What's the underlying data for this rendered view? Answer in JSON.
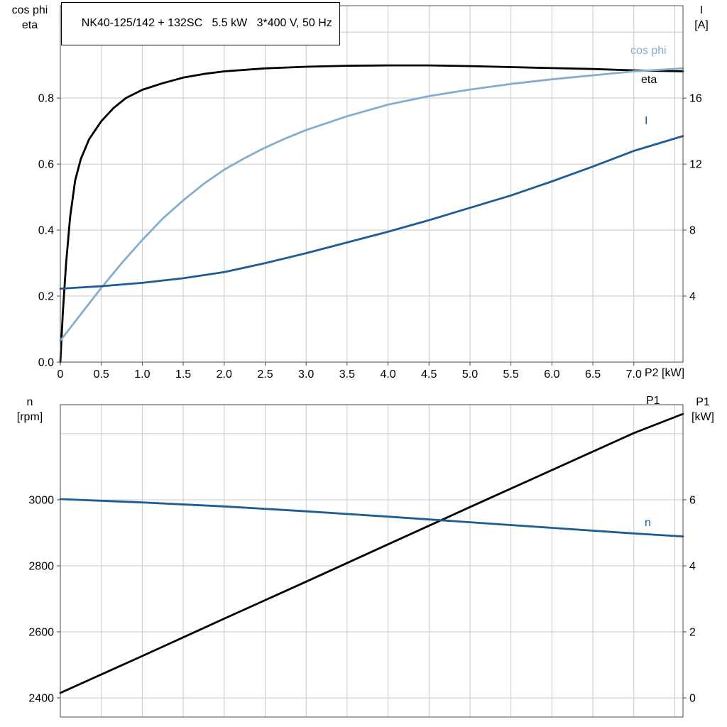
{
  "title": "NK40-125/142 + 132SC   5.5 kW   3*400 V, 50 Hz",
  "colors": {
    "black": "#000000",
    "dark_blue": "#1d5c96",
    "light_blue": "#85aecd",
    "grid": "#c9c9c9",
    "border": "#4d4d4d",
    "background": "#ffffff"
  },
  "labels": {
    "top_left_1": "cos phi",
    "top_left_2": "eta",
    "top_right_1": "I",
    "top_right_2": "[A]",
    "x_axis": "P2 [kW]",
    "curve_cos_phi": "cos phi",
    "curve_eta": "eta",
    "curve_current": "I",
    "bottom_left_1": "n",
    "bottom_left_2": "[rpm]",
    "bottom_right_1": "P1",
    "bottom_right_2": "[kW]",
    "curve_p1": "P1",
    "curve_n": "n"
  },
  "chart_data": [
    {
      "type": "line",
      "name": "top",
      "title": "NK40-125/142 + 132SC   5.5 kW   3*400 V, 50 Hz",
      "xlabel": "P2 [kW]",
      "ylabel_left": "cos phi / eta",
      "ylabel_right": "I [A]",
      "xlim": [
        0,
        7.6
      ],
      "ylim_left": [
        0,
        1.08
      ],
      "ylim_right": [
        0,
        21.6
      ],
      "grid_on": true,
      "x_ticks": {
        "values": [
          0,
          0.5,
          1,
          1.5,
          2,
          2.5,
          3,
          3.5,
          4,
          4.5,
          5,
          5.5,
          6,
          6.5,
          7
        ],
        "labels": [
          "0",
          "0.5",
          "1.0",
          "1.5",
          "2.0",
          "2.5",
          "3.0",
          "3.5",
          "4.0",
          "4.5",
          "5.0",
          "5.5",
          "6.0",
          "6.5",
          "7.0"
        ]
      },
      "y_ticks_left": {
        "values": [
          0,
          0.2,
          0.4,
          0.6,
          0.8
        ],
        "labels": [
          "0.0",
          "0.2",
          "0.4",
          "0.6",
          "0.8"
        ]
      },
      "y_ticks_right": {
        "values": [
          4,
          8,
          12,
          16
        ],
        "labels": [
          "4",
          "8",
          "12",
          "16"
        ]
      },
      "grid_x": [
        0.5,
        1,
        1.5,
        2,
        2.5,
        3,
        3.5,
        4,
        4.5,
        5,
        5.5,
        6,
        6.5,
        7,
        7.5
      ],
      "grid_y": [
        0.2,
        0.4,
        0.6,
        0.8,
        1.0
      ],
      "series": [
        {
          "name": "eta",
          "axis": "left",
          "color": "#000000",
          "width": 2.8,
          "points": [
            [
              0,
              0
            ],
            [
              0.03,
              0.15
            ],
            [
              0.07,
              0.3
            ],
            [
              0.12,
              0.44
            ],
            [
              0.18,
              0.55
            ],
            [
              0.25,
              0.615
            ],
            [
              0.35,
              0.675
            ],
            [
              0.5,
              0.73
            ],
            [
              0.65,
              0.77
            ],
            [
              0.8,
              0.8
            ],
            [
              1.0,
              0.825
            ],
            [
              1.25,
              0.845
            ],
            [
              1.5,
              0.862
            ],
            [
              1.75,
              0.873
            ],
            [
              2.0,
              0.881
            ],
            [
              2.5,
              0.89
            ],
            [
              3.0,
              0.895
            ],
            [
              3.5,
              0.898
            ],
            [
              4.0,
              0.899
            ],
            [
              4.5,
              0.899
            ],
            [
              5.0,
              0.897
            ],
            [
              5.5,
              0.894
            ],
            [
              6.0,
              0.891
            ],
            [
              6.5,
              0.888
            ],
            [
              7.0,
              0.884
            ],
            [
              7.6,
              0.881
            ]
          ]
        },
        {
          "name": "cos phi",
          "axis": "left",
          "color": "#85aecd",
          "width": 2.8,
          "points": [
            [
              0,
              0.065
            ],
            [
              0.25,
              0.145
            ],
            [
              0.5,
              0.225
            ],
            [
              0.75,
              0.3
            ],
            [
              1.0,
              0.37
            ],
            [
              1.25,
              0.435
            ],
            [
              1.5,
              0.49
            ],
            [
              1.75,
              0.54
            ],
            [
              2.0,
              0.583
            ],
            [
              2.25,
              0.618
            ],
            [
              2.5,
              0.65
            ],
            [
              2.75,
              0.678
            ],
            [
              3.0,
              0.703
            ],
            [
              3.5,
              0.745
            ],
            [
              4.0,
              0.78
            ],
            [
              4.5,
              0.806
            ],
            [
              5.0,
              0.826
            ],
            [
              5.5,
              0.843
            ],
            [
              6.0,
              0.857
            ],
            [
              6.5,
              0.869
            ],
            [
              7.0,
              0.881
            ],
            [
              7.6,
              0.89
            ]
          ]
        },
        {
          "name": "I",
          "axis": "right",
          "color": "#1d5c96",
          "width": 2.8,
          "points": [
            [
              0,
              4.45
            ],
            [
              0.5,
              4.6
            ],
            [
              1.0,
              4.8
            ],
            [
              1.5,
              5.08
            ],
            [
              2.0,
              5.45
            ],
            [
              2.5,
              6.0
            ],
            [
              3.0,
              6.6
            ],
            [
              3.5,
              7.25
            ],
            [
              4.0,
              7.9
            ],
            [
              4.5,
              8.6
            ],
            [
              5.0,
              9.35
            ],
            [
              5.5,
              10.1
            ],
            [
              6.0,
              10.95
            ],
            [
              6.5,
              11.85
            ],
            [
              7.0,
              12.8
            ],
            [
              7.6,
              13.7
            ]
          ]
        }
      ]
    },
    {
      "type": "line",
      "name": "bottom",
      "title": "",
      "xlabel": "",
      "ylabel_left": "n [rpm]",
      "ylabel_right": "P1 [kW]",
      "xlim": [
        0,
        7.6
      ],
      "ylim_left": [
        2342,
        3288
      ],
      "ylim_right": [
        -0.58,
        8.88
      ],
      "grid_on": true,
      "x_ticks": {
        "values": [],
        "labels": []
      },
      "y_ticks_left": {
        "values": [
          2400,
          2600,
          2800,
          3000
        ],
        "labels": [
          "2400",
          "2600",
          "2800",
          "3000"
        ]
      },
      "y_ticks_right": {
        "values": [
          0,
          2,
          4,
          6
        ],
        "labels": [
          "0",
          "2",
          "4",
          "6"
        ]
      },
      "grid_x": [
        0.5,
        1,
        1.5,
        2,
        2.5,
        3,
        3.5,
        4,
        4.5,
        5,
        5.5,
        6,
        6.5,
        7,
        7.5
      ],
      "grid_y": [
        2400,
        2600,
        2800,
        3000,
        3200
      ],
      "series": [
        {
          "name": "P1",
          "axis": "right",
          "color": "#000000",
          "width": 2.8,
          "points": [
            [
              0,
              0.15
            ],
            [
              1,
              1.27
            ],
            [
              2,
              2.4
            ],
            [
              3,
              3.52
            ],
            [
              4,
              4.65
            ],
            [
              5,
              5.78
            ],
            [
              6,
              6.9
            ],
            [
              7,
              8.02
            ],
            [
              7.6,
              8.6
            ]
          ]
        },
        {
          "name": "n",
          "axis": "left",
          "color": "#1d5c96",
          "width": 2.8,
          "points": [
            [
              0,
              3002
            ],
            [
              1,
              2992
            ],
            [
              2,
              2980
            ],
            [
              3,
              2965
            ],
            [
              4,
              2949
            ],
            [
              5,
              2932
            ],
            [
              6,
              2915
            ],
            [
              7,
              2898
            ],
            [
              7.6,
              2889
            ]
          ]
        }
      ]
    }
  ]
}
